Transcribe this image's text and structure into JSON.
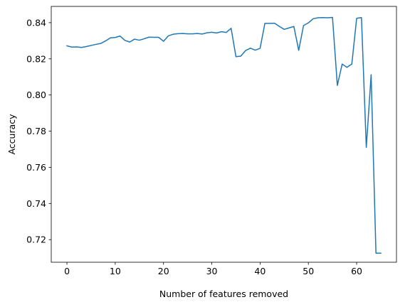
{
  "chart_data": {
    "type": "line",
    "title": "",
    "xlabel": "Number of features removed",
    "ylabel": "Accuracy",
    "xlim": [
      -3.25,
      68.25
    ],
    "ylim": [
      0.7075,
      0.849
    ],
    "xticks": [
      0,
      10,
      20,
      30,
      40,
      50,
      60
    ],
    "yticks": [
      0.72,
      0.74,
      0.76,
      0.78,
      0.8,
      0.82,
      0.84
    ],
    "grid": false,
    "legend": "none",
    "series": [
      {
        "color": "#1f77b4",
        "x": [
          0,
          1,
          2,
          3,
          4,
          5,
          6,
          7,
          8,
          9,
          10,
          11,
          12,
          13,
          14,
          15,
          16,
          17,
          18,
          19,
          20,
          21,
          22,
          23,
          24,
          25,
          26,
          27,
          28,
          29,
          30,
          31,
          32,
          33,
          34,
          35,
          36,
          37,
          38,
          39,
          40,
          41,
          42,
          43,
          44,
          45,
          46,
          47,
          48,
          49,
          50,
          51,
          52,
          53,
          54,
          55,
          56,
          57,
          58,
          59,
          60,
          61,
          62,
          63,
          64,
          65
        ],
        "y": [
          0.8272,
          0.8265,
          0.8266,
          0.8263,
          0.8268,
          0.8274,
          0.828,
          0.8285,
          0.8299,
          0.8316,
          0.8318,
          0.8326,
          0.8302,
          0.8293,
          0.8309,
          0.8303,
          0.8311,
          0.832,
          0.8319,
          0.8319,
          0.8297,
          0.8327,
          0.8336,
          0.8339,
          0.834,
          0.8338,
          0.8338,
          0.834,
          0.8337,
          0.8344,
          0.8347,
          0.8343,
          0.835,
          0.8346,
          0.8369,
          0.8212,
          0.8215,
          0.8246,
          0.8259,
          0.8248,
          0.8258,
          0.8396,
          0.8396,
          0.8397,
          0.8379,
          0.8363,
          0.8371,
          0.8379,
          0.8247,
          0.8384,
          0.8399,
          0.8422,
          0.8427,
          0.8428,
          0.8427,
          0.8429,
          0.8053,
          0.8171,
          0.8153,
          0.8171,
          0.8424,
          0.8428,
          0.771,
          0.8112,
          0.7125,
          0.7125
        ]
      }
    ]
  }
}
